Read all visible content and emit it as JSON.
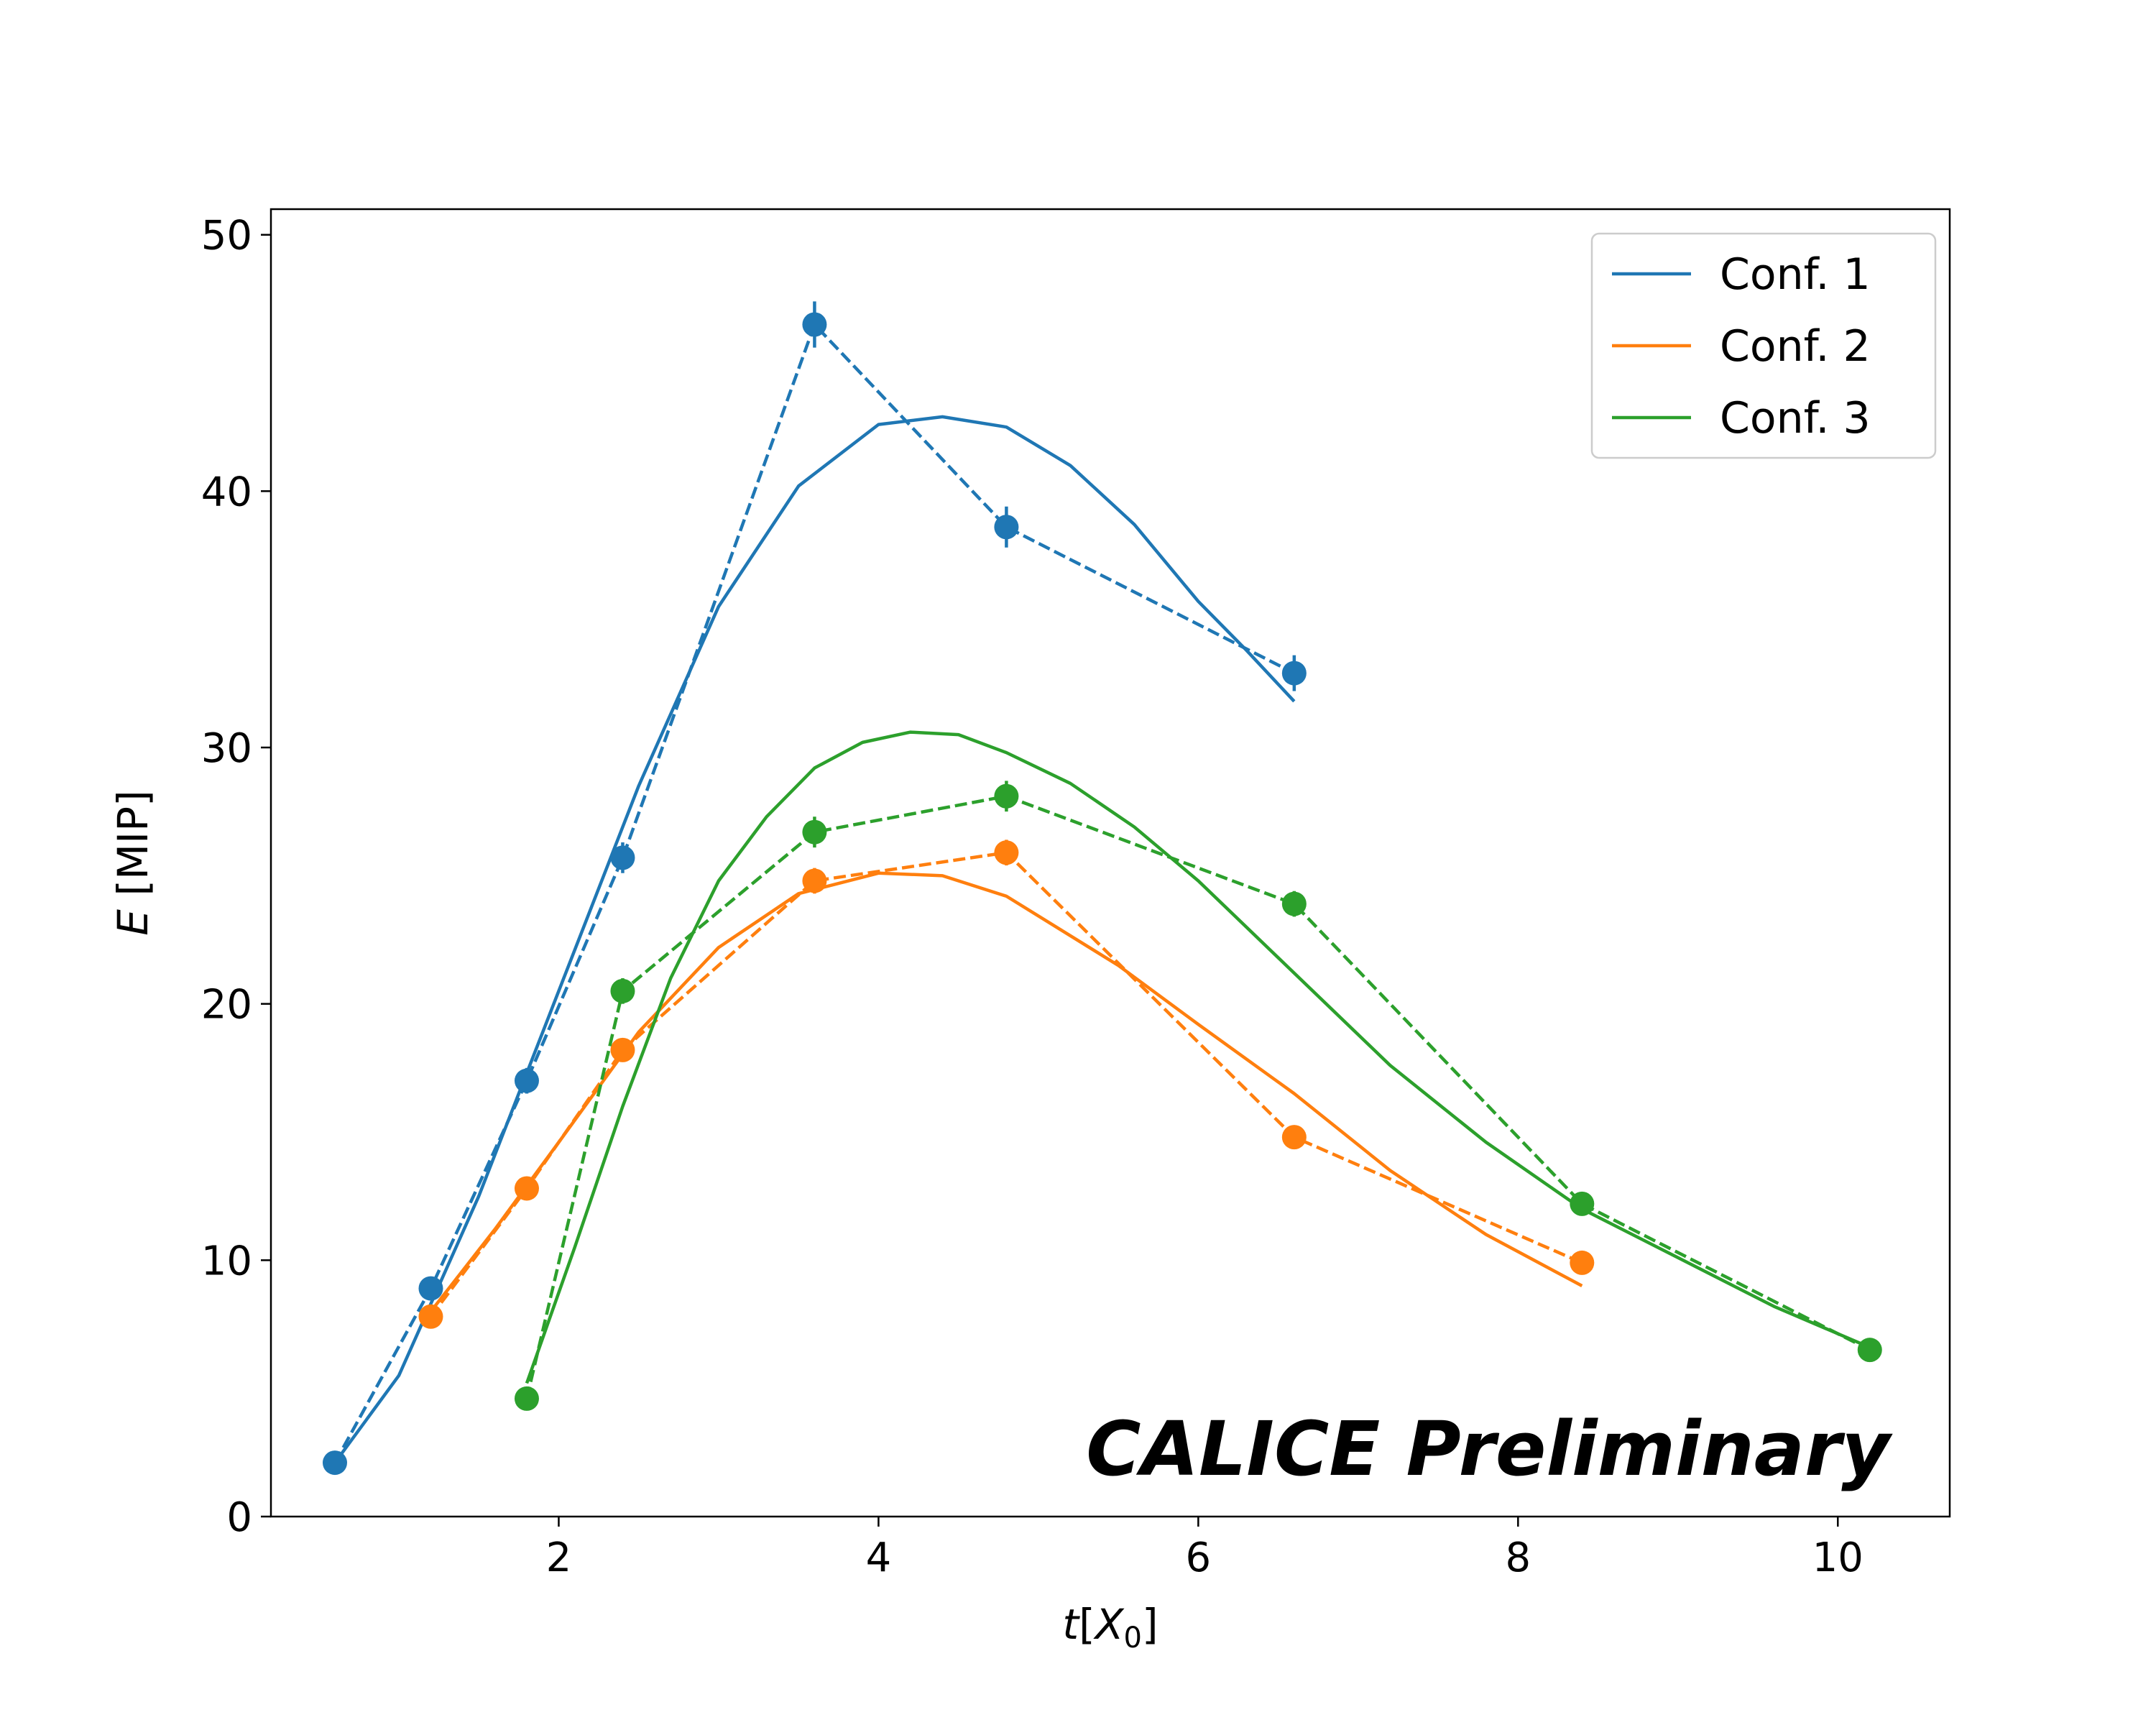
{
  "chart_data": {
    "type": "line",
    "xlabel": "t[X0]",
    "xlabel_parts": {
      "var": "t",
      "open": "[",
      "sym": "X",
      "sub": "0",
      "close": "]"
    },
    "ylabel": "E [MIP]",
    "ylabel_parts": {
      "var": "E",
      "rest": " [MIP]"
    },
    "xlim": [
      0.2,
      10.7
    ],
    "ylim": [
      0,
      51
    ],
    "xticks": [
      2,
      4,
      6,
      8,
      10
    ],
    "yticks": [
      0,
      10,
      20,
      30,
      40,
      50
    ],
    "grid": false,
    "legend_position": "top-right",
    "annotation": "CALICE Preliminary",
    "series": [
      {
        "name": "Conf. 1",
        "color": "#1f77b4",
        "points": {
          "x": [
            0.6,
            1.2,
            1.8,
            2.4,
            3.6,
            4.8,
            6.6
          ],
          "y": [
            2.1,
            8.9,
            17.0,
            25.7,
            46.5,
            38.6,
            32.9
          ]
        },
        "errors": [
          0.3,
          0.4,
          0.5,
          0.6,
          0.9,
          0.8,
          0.7
        ],
        "fit": {
          "x": [
            0.6,
            1.0,
            1.5,
            2.0,
            2.5,
            3.0,
            3.5,
            4.0,
            4.4,
            4.8,
            5.2,
            5.6,
            6.0,
            6.3,
            6.6
          ],
          "y": [
            2.1,
            5.5,
            12.5,
            20.5,
            28.5,
            35.5,
            40.2,
            42.6,
            42.9,
            42.5,
            41.0,
            38.7,
            35.7,
            33.8,
            31.8
          ]
        }
      },
      {
        "name": "Conf. 2",
        "color": "#ff7f0e",
        "points": {
          "x": [
            1.2,
            1.8,
            2.4,
            3.6,
            4.8,
            6.6,
            8.4
          ],
          "y": [
            7.8,
            12.8,
            18.2,
            24.8,
            25.9,
            14.8,
            9.9
          ]
        },
        "errors": [
          0.3,
          0.3,
          0.4,
          0.5,
          0.5,
          0.4,
          0.3
        ],
        "fit": {
          "x": [
            1.2,
            1.6,
            2.0,
            2.5,
            3.0,
            3.5,
            4.0,
            4.4,
            4.8,
            5.5,
            6.0,
            6.6,
            7.2,
            7.8,
            8.4
          ],
          "y": [
            8.0,
            11.2,
            14.6,
            18.9,
            22.2,
            24.3,
            25.1,
            25.0,
            24.2,
            21.5,
            19.2,
            16.5,
            13.5,
            11.0,
            9.0
          ]
        }
      },
      {
        "name": "Conf. 3",
        "color": "#2ca02c",
        "points": {
          "x": [
            1.8,
            2.4,
            3.6,
            4.8,
            6.6,
            8.4,
            10.2
          ],
          "y": [
            4.6,
            20.5,
            26.7,
            28.1,
            23.9,
            12.2,
            6.5
          ]
        },
        "errors": [
          0.3,
          0.5,
          0.6,
          0.6,
          0.5,
          0.4,
          0.3
        ],
        "fit": {
          "x": [
            1.8,
            2.1,
            2.4,
            2.7,
            3.0,
            3.3,
            3.6,
            3.9,
            4.2,
            4.5,
            4.8,
            5.2,
            5.6,
            6.0,
            6.6,
            7.2,
            7.8,
            8.4,
            9.0,
            9.6,
            10.2
          ],
          "y": [
            5.2,
            10.5,
            16.0,
            21.0,
            24.8,
            27.3,
            29.2,
            30.2,
            30.6,
            30.5,
            29.8,
            28.6,
            26.9,
            24.8,
            21.2,
            17.6,
            14.6,
            12.0,
            10.1,
            8.2,
            6.6
          ]
        }
      }
    ]
  }
}
